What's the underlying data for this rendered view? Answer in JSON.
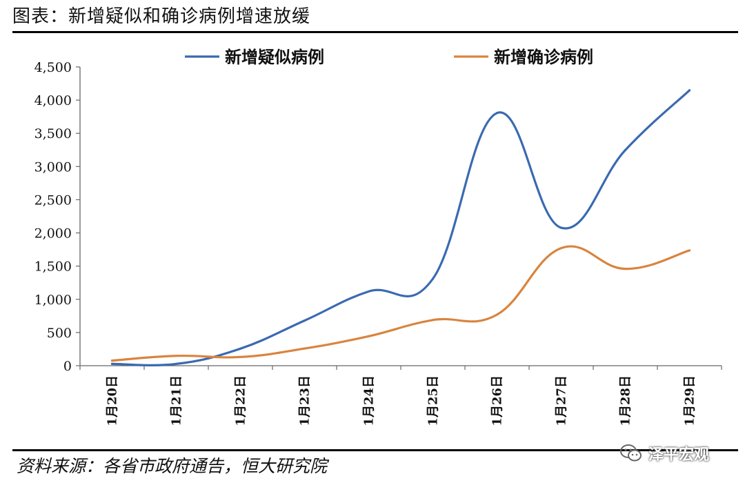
{
  "header": {
    "title": "图表：新增疑似和确诊病例增速放缓"
  },
  "footer": {
    "source": "资料来源：各省市政府通告，恒大研究院"
  },
  "watermark": {
    "text": "泽平宏观",
    "icon": "wechat-icon"
  },
  "colors": {
    "suspected": "#3a6ab0",
    "confirmed": "#d9843e"
  },
  "chart_data": {
    "type": "line",
    "title": "",
    "xlabel": "",
    "ylabel": "",
    "categories": [
      "1月20日",
      "1月21日",
      "1月22日",
      "1月23日",
      "1月24日",
      "1月25日",
      "1月26日",
      "1月27日",
      "1月28日",
      "1月29日"
    ],
    "ylim": [
      0,
      4500
    ],
    "yticks": [
      0,
      500,
      1000,
      1500,
      2000,
      2500,
      3000,
      3500,
      4000,
      4500
    ],
    "ytick_labels": [
      "0",
      "500",
      "1,000",
      "1,500",
      "2,000",
      "2,500",
      "3,000",
      "3,500",
      "4,000",
      "4,500"
    ],
    "grid": false,
    "legend": "top",
    "smooth": true,
    "series": [
      {
        "name": "新增疑似病例",
        "color": "#3a6ab0",
        "values": [
          27,
          27,
          257,
          680,
          1118,
          1309,
          3806,
          2077,
          3248,
          4148
        ]
      },
      {
        "name": "新增确诊病例",
        "color": "#d9843e",
        "values": [
          77,
          149,
          131,
          259,
          444,
          688,
          769,
          1771,
          1459,
          1737
        ]
      }
    ]
  }
}
